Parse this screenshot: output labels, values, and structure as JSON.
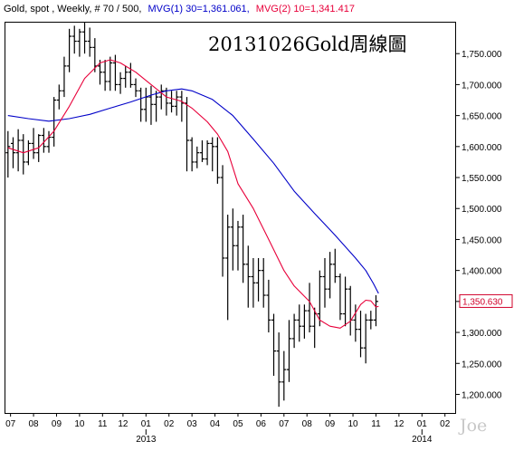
{
  "header": {
    "symbol": "Gold, spot , Weekly, # 70 / 500,",
    "ma1_label": "MVG(1) 30=1,361.061,",
    "ma2_label": "MVG(2) 10=1,341.417"
  },
  "colors": {
    "background": "#ffffff",
    "frame": "#000000",
    "bars": "#000000",
    "ma30": "#0000c8",
    "ma10": "#e8003a",
    "last_price_box": "#d0002a",
    "watermark": "#c8c8c8"
  },
  "chart_data": {
    "type": "ohlc",
    "title": "20131026Gold周線圖",
    "watermark": "Joe",
    "interval": "weekly",
    "y_axis": {
      "range": [
        1170,
        1800
      ],
      "ticks": [
        "1,200.000",
        "1,250.000",
        "1,300.000",
        "1,350.000",
        "1,400.000",
        "1,450.000",
        "1,500.000",
        "1,550.000",
        "1,600.000",
        "1,650.000",
        "1,700.000",
        "1,750.000"
      ],
      "tick_values": [
        1200,
        1250,
        1300,
        1350,
        1400,
        1450,
        1500,
        1550,
        1600,
        1650,
        1700,
        1750
      ]
    },
    "x_axis": {
      "month_labels": [
        "07",
        "08",
        "09",
        "10",
        "11",
        "12",
        "01",
        "02",
        "03",
        "04",
        "05",
        "06",
        "07",
        "08",
        "09",
        "10",
        "11",
        "12",
        "01",
        "02"
      ],
      "month_weeks": [
        0.5,
        5,
        9.5,
        14,
        18.5,
        22.5,
        27,
        31.5,
        36,
        40.5,
        45,
        49.5,
        54,
        58.5,
        63,
        67.5,
        72,
        76.5,
        81,
        85.5
      ],
      "year_labels": [
        "2013",
        "2014"
      ],
      "year_weeks": [
        27,
        81
      ],
      "week_range": [
        -0.5,
        87.5
      ]
    },
    "last_price": "1,350.630",
    "last_price_value": 1350.63,
    "series": [
      {
        "name": "MVG(1) 30",
        "value": 1361.061,
        "values": [
          [
            0,
            1650
          ],
          [
            4,
            1645
          ],
          [
            8,
            1641
          ],
          [
            12,
            1645
          ],
          [
            16,
            1652
          ],
          [
            20,
            1662
          ],
          [
            24,
            1672
          ],
          [
            28,
            1683
          ],
          [
            31,
            1690
          ],
          [
            34,
            1693
          ],
          [
            36,
            1690
          ],
          [
            40,
            1676
          ],
          [
            44,
            1650
          ],
          [
            48,
            1612
          ],
          [
            52,
            1573
          ],
          [
            56,
            1528
          ],
          [
            60,
            1492
          ],
          [
            64,
            1457
          ],
          [
            68,
            1420
          ],
          [
            70,
            1400
          ],
          [
            71.5,
            1379
          ],
          [
            72.5,
            1363
          ]
        ]
      },
      {
        "name": "MVG(2) 10",
        "value": 1341.417,
        "values": [
          [
            0,
            1598
          ],
          [
            3,
            1590
          ],
          [
            6,
            1598
          ],
          [
            9,
            1625
          ],
          [
            12,
            1665
          ],
          [
            15,
            1710
          ],
          [
            18,
            1735
          ],
          [
            20,
            1740
          ],
          [
            22,
            1735
          ],
          [
            25,
            1720
          ],
          [
            28,
            1700
          ],
          [
            31,
            1680
          ],
          [
            34,
            1673
          ],
          [
            36,
            1662
          ],
          [
            39,
            1640
          ],
          [
            41,
            1620
          ],
          [
            43,
            1592
          ],
          [
            45,
            1540
          ],
          [
            48,
            1500
          ],
          [
            51,
            1450
          ],
          [
            54,
            1400
          ],
          [
            56,
            1375
          ],
          [
            59,
            1350
          ],
          [
            61,
            1320
          ],
          [
            63,
            1310
          ],
          [
            65,
            1307
          ],
          [
            67,
            1318
          ],
          [
            69,
            1345
          ],
          [
            70,
            1352
          ],
          [
            71,
            1351
          ],
          [
            72,
            1341
          ],
          [
            72.5,
            1342
          ]
        ]
      }
    ],
    "bars": [
      [
        1590,
        1625,
        1550,
        1600
      ],
      [
        1605,
        1615,
        1565,
        1590
      ],
      [
        1590,
        1628,
        1560,
        1610
      ],
      [
        1610,
        1620,
        1555,
        1575
      ],
      [
        1575,
        1610,
        1570,
        1605
      ],
      [
        1605,
        1630,
        1580,
        1590
      ],
      [
        1590,
        1620,
        1575,
        1618
      ],
      [
        1618,
        1630,
        1590,
        1600
      ],
      [
        1600,
        1625,
        1590,
        1615
      ],
      [
        1615,
        1680,
        1600,
        1675
      ],
      [
        1675,
        1700,
        1660,
        1690
      ],
      [
        1690,
        1745,
        1680,
        1730
      ],
      [
        1730,
        1790,
        1720,
        1778
      ],
      [
        1778,
        1795,
        1750,
        1770
      ],
      [
        1770,
        1790,
        1745,
        1785
      ],
      [
        1785,
        1800,
        1750,
        1770
      ],
      [
        1770,
        1792,
        1745,
        1760
      ],
      [
        1760,
        1775,
        1720,
        1730
      ],
      [
        1730,
        1740,
        1700,
        1720
      ],
      [
        1720,
        1740,
        1690,
        1705
      ],
      [
        1705,
        1745,
        1690,
        1735
      ],
      [
        1735,
        1748,
        1690,
        1700
      ],
      [
        1700,
        1720,
        1685,
        1710
      ],
      [
        1710,
        1730,
        1695,
        1720
      ],
      [
        1720,
        1735,
        1695,
        1700
      ],
      [
        1700,
        1710,
        1680,
        1690
      ],
      [
        1690,
        1695,
        1640,
        1660
      ],
      [
        1660,
        1695,
        1640,
        1680
      ],
      [
        1680,
        1698,
        1635,
        1668
      ],
      [
        1668,
        1690,
        1640,
        1680
      ],
      [
        1680,
        1700,
        1660,
        1690
      ],
      [
        1690,
        1695,
        1650,
        1670
      ],
      [
        1670,
        1690,
        1655,
        1665
      ],
      [
        1665,
        1690,
        1650,
        1680
      ],
      [
        1680,
        1690,
        1640,
        1670
      ],
      [
        1670,
        1680,
        1560,
        1610
      ],
      [
        1610,
        1615,
        1560,
        1575
      ],
      [
        1575,
        1600,
        1565,
        1590
      ],
      [
        1590,
        1610,
        1575,
        1580
      ],
      [
        1580,
        1610,
        1570,
        1605
      ],
      [
        1605,
        1615,
        1560,
        1600
      ],
      [
        1600,
        1615,
        1540,
        1550
      ],
      [
        1550,
        1570,
        1390,
        1420
      ],
      [
        1420,
        1490,
        1320,
        1470
      ],
      [
        1470,
        1500,
        1400,
        1440
      ],
      [
        1440,
        1480,
        1400,
        1470
      ],
      [
        1470,
        1490,
        1380,
        1410
      ],
      [
        1410,
        1440,
        1340,
        1390
      ],
      [
        1390,
        1420,
        1340,
        1380
      ],
      [
        1380,
        1420,
        1350,
        1400
      ],
      [
        1400,
        1420,
        1340,
        1360
      ],
      [
        1360,
        1385,
        1300,
        1320
      ],
      [
        1320,
        1330,
        1230,
        1270
      ],
      [
        1270,
        1300,
        1180,
        1220
      ],
      [
        1220,
        1270,
        1190,
        1240
      ],
      [
        1240,
        1320,
        1220,
        1290
      ],
      [
        1290,
        1330,
        1275,
        1320
      ],
      [
        1320,
        1345,
        1285,
        1310
      ],
      [
        1310,
        1345,
        1290,
        1335
      ],
      [
        1335,
        1380,
        1300,
        1310
      ],
      [
        1310,
        1340,
        1275,
        1330
      ],
      [
        1330,
        1400,
        1310,
        1390
      ],
      [
        1390,
        1420,
        1340,
        1370
      ],
      [
        1370,
        1430,
        1355,
        1410
      ],
      [
        1410,
        1435,
        1380,
        1390
      ],
      [
        1390,
        1395,
        1320,
        1330
      ],
      [
        1330,
        1390,
        1310,
        1370
      ],
      [
        1370,
        1375,
        1295,
        1320
      ],
      [
        1320,
        1345,
        1285,
        1305
      ],
      [
        1305,
        1335,
        1260,
        1275
      ],
      [
        1275,
        1330,
        1250,
        1320
      ],
      [
        1320,
        1335,
        1305,
        1320
      ],
      [
        1320,
        1360,
        1310,
        1350
      ]
    ]
  }
}
